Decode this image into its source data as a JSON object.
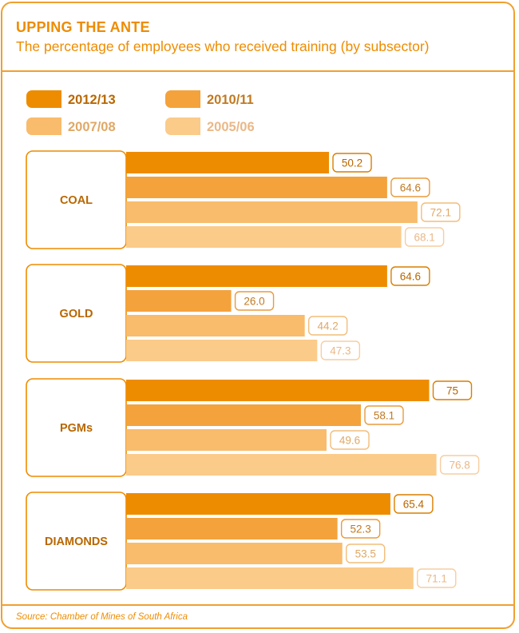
{
  "title": "UPPING THE ANTE",
  "subtitle": "The percentage of employees who received training (by subsector)",
  "source": "Source: Chamber of Mines of South Africa",
  "colors": {
    "accent": "#ee8c00",
    "series": [
      "#ee8c00",
      "#f4a23c",
      "#f8bc6c",
      "#fbcb8a"
    ],
    "label_border": [
      "#d97f00",
      "#e89b3e",
      "#f2bd7a",
      "#f7cea0"
    ],
    "label_text": [
      "#b86700",
      "#c07a22",
      "#e0a866",
      "#eab888"
    ]
  },
  "chart_data": {
    "type": "bar",
    "orientation": "horizontal",
    "categories": [
      "COAL",
      "GOLD",
      "PGMs",
      "DIAMONDS"
    ],
    "series": [
      {
        "name": "2012/13",
        "values": [
          50.2,
          64.6,
          75,
          65.4
        ]
      },
      {
        "name": "2010/11",
        "values": [
          64.6,
          26.0,
          58.1,
          52.3
        ]
      },
      {
        "name": "2007/08",
        "values": [
          72.1,
          44.2,
          49.6,
          53.5
        ]
      },
      {
        "name": "2005/06",
        "values": [
          68.1,
          47.3,
          76.8,
          71.1
        ]
      }
    ],
    "value_labels": [
      [
        "50.2",
        "64.6",
        "75",
        "65.4"
      ],
      [
        "64.6",
        "26.0",
        "58.1",
        "52.3"
      ],
      [
        "72.1",
        "44.2",
        "49.6",
        "53.5"
      ],
      [
        "68.1",
        "47.3",
        "76.8",
        "71.1"
      ]
    ],
    "xlim": [
      0,
      100
    ],
    "grid": false,
    "legend_position": "top-left"
  }
}
